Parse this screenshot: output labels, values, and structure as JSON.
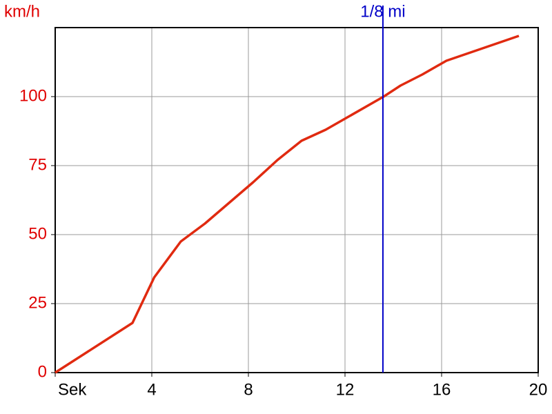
{
  "chart_data": {
    "type": "line",
    "y_label": "km/h",
    "x": [
      0,
      3.2,
      4.1,
      5.2,
      6.2,
      7.2,
      8.2,
      9.2,
      10.2,
      11.2,
      12.2,
      13.6,
      14.3,
      15.2,
      16.2,
      17.2,
      18.2,
      19.2
    ],
    "series": [
      {
        "color": "#e02a10",
        "values": [
          0,
          18,
          34.5,
          47.5,
          54,
          61.5,
          69,
          77,
          84,
          88,
          93,
          100,
          104,
          108,
          113,
          116,
          119,
          122
        ]
      }
    ],
    "xlim": [
      0,
      20
    ],
    "xticks": [
      {
        "value": 0,
        "label": "Sek"
      },
      4,
      8,
      12,
      16,
      20
    ],
    "ylim": [
      0,
      125
    ],
    "yticks": [
      0,
      25,
      50,
      75,
      100
    ],
    "grid": true,
    "markers": [
      {
        "label": "1/8 mi",
        "x": 13.57,
        "color": "#0000c8"
      }
    ]
  }
}
